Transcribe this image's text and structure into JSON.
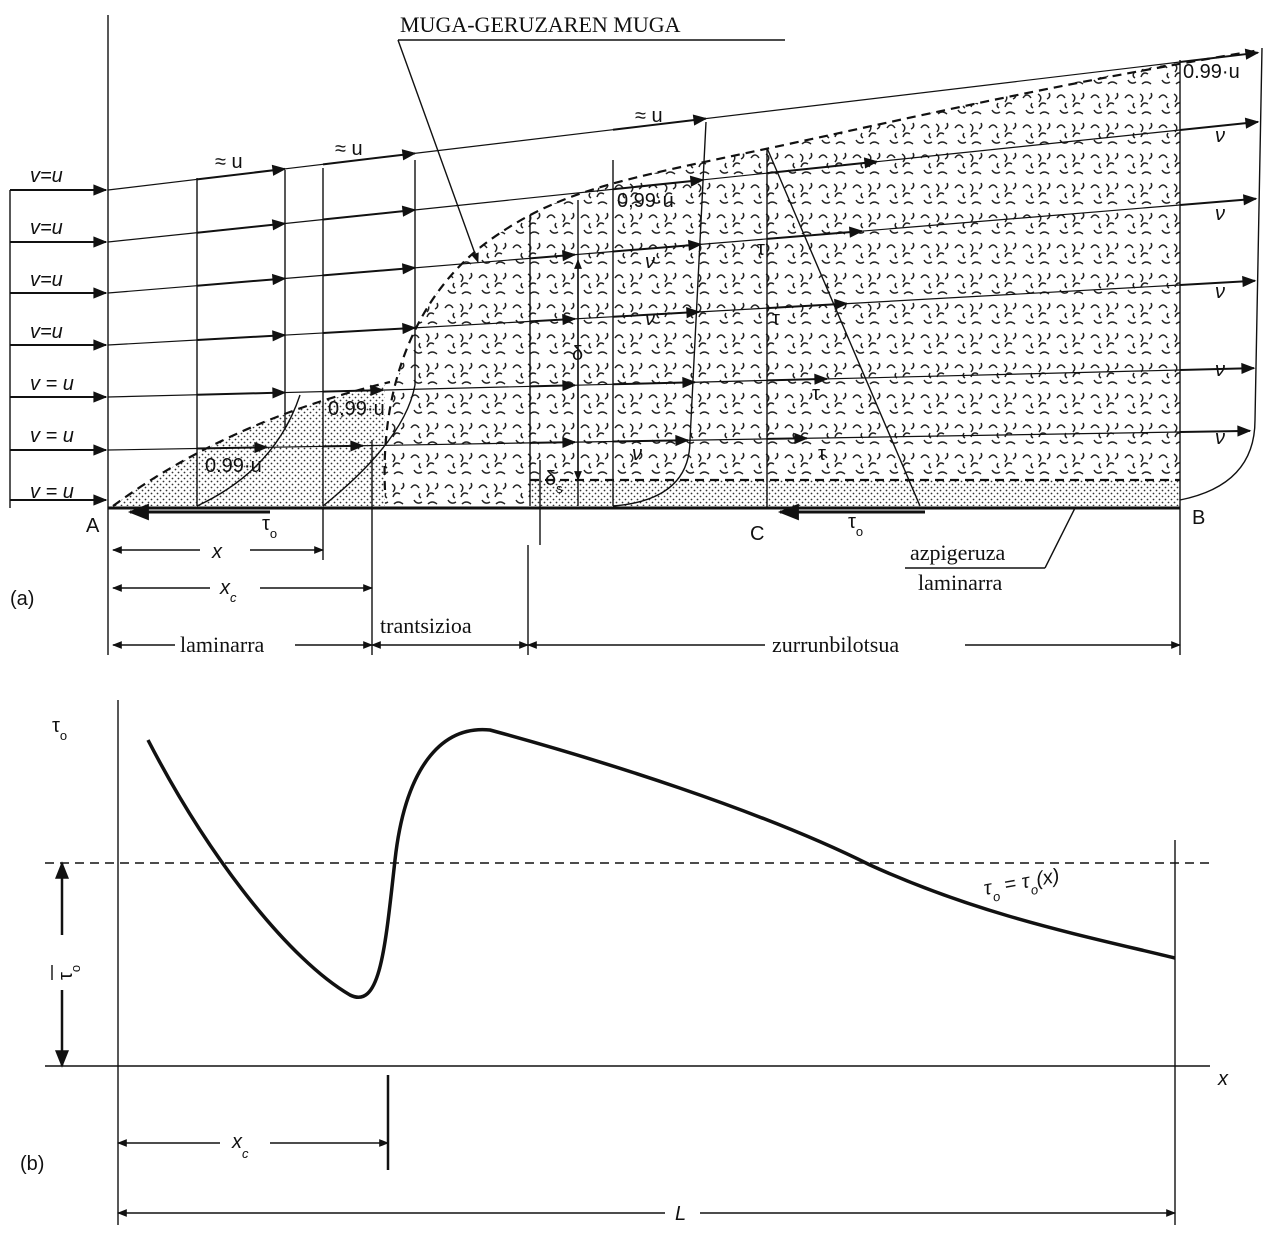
{
  "part_a": {
    "label": "(a)",
    "title": "MUGA-GERUZAREN MUGA",
    "inlet_labels": [
      "v=u",
      "v=u",
      "v=u",
      "v=u",
      "v = u",
      "v = u",
      "v = u"
    ],
    "approx_labels": [
      "≈ u",
      "≈ u",
      "≈ u"
    ],
    "edge_labels": [
      "0.99·u",
      "0,99·u",
      "0,99·u",
      "0.99·u"
    ],
    "v_labels": [
      "ν",
      "ν",
      "ν",
      "ν",
      "ν",
      "ν",
      "ν",
      "ν"
    ],
    "tau_labels": [
      "τ",
      "τ",
      "τ",
      "τ"
    ],
    "delta": "δ",
    "delta_s": {
      "symbol": "δ",
      "subscript": "s"
    },
    "points": {
      "a": "A",
      "b": "B",
      "c": "C"
    },
    "wall_shear": [
      {
        "symbol": "τ",
        "subscript": "o"
      },
      {
        "symbol": "τ",
        "subscript": "o"
      }
    ],
    "x": "x",
    "xc": {
      "symbol": "x",
      "subscript": "c"
    },
    "regions": [
      "laminarra",
      "trantsizioa",
      "zurrunbilotsua"
    ],
    "sublayer": [
      "azpigeruza",
      "laminarra"
    ]
  },
  "part_b": {
    "label": "(b)",
    "y_axis": {
      "symbol": "τ",
      "subscript": "o"
    },
    "x_axis": "x",
    "curve_label": {
      "lhs_symbol": "τ",
      "lhs_subscript": "o",
      "equals": "=",
      "rhs_symbol": "τ",
      "rhs_subscript": "o",
      "argument": "(x)"
    },
    "mean": {
      "symbol": "τ",
      "subscript": "o"
    },
    "xc": {
      "symbol": "x",
      "subscript": "c"
    },
    "length": "L"
  }
}
